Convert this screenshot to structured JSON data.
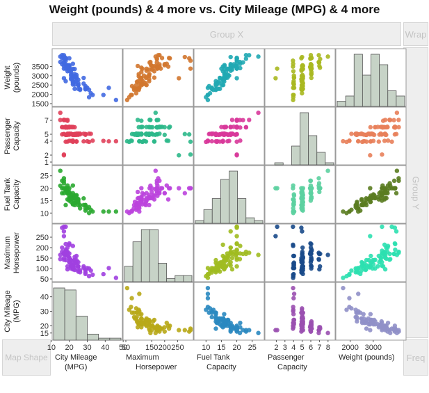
{
  "title": "Weight (pounds) & 4 more vs. City Mileage (MPG) & 4 more",
  "zones": {
    "group_x": "Group X",
    "wrap": "Wrap",
    "group_y": "Group Y",
    "map_shape": "Map Shape",
    "freq": "Freq"
  },
  "chart_data": {
    "type": "scatter",
    "variables": [
      {
        "id": "weight",
        "col_label": [
          "Weight (pounds)"
        ],
        "row_label": [
          "Weight",
          "(pounds)"
        ],
        "range": [
          1500,
          4300
        ],
        "col_ticks": [
          2000,
          3000
        ],
        "row_ticks": [
          1500,
          2000,
          2500,
          3000,
          3500
        ],
        "hist": [
          1,
          2,
          10,
          6,
          10,
          8,
          3,
          2
        ]
      },
      {
        "id": "passenger",
        "col_label": [
          "Passenger",
          "Capacity"
        ],
        "row_label": [
          "Passenger",
          "Capacity"
        ],
        "range": [
          1,
          8.5
        ],
        "col_ticks": [
          2,
          3,
          4,
          5,
          6,
          7,
          8
        ],
        "row_ticks": [
          1,
          2,
          4,
          5,
          7
        ],
        "hist": [
          0,
          1,
          0,
          9,
          25,
          14,
          6,
          1
        ]
      },
      {
        "id": "fuel",
        "col_label": [
          "Fuel Tank",
          "Capacity"
        ],
        "row_label": [
          "Fuel Tank",
          "Capacity"
        ],
        "range": [
          7,
          28
        ],
        "col_ticks": [
          10,
          15,
          20,
          25
        ],
        "row_ticks": [
          10,
          15,
          20,
          25
        ],
        "hist": [
          1,
          5,
          9,
          16,
          19,
          9,
          2,
          1
        ]
      },
      {
        "id": "hp",
        "col_label": [
          "Maximum",
          "Horsepower"
        ],
        "row_label": [
          "Maximum",
          "Horsepower"
        ],
        "range": [
          50,
          300
        ],
        "col_ticks": [
          50,
          150,
          200,
          250
        ],
        "row_ticks": [
          50,
          100,
          150,
          200,
          250
        ],
        "hist": [
          5,
          13,
          17,
          17,
          6,
          1,
          2,
          2
        ]
      },
      {
        "id": "mpg",
        "col_label": [
          "City Mileage",
          "(MPG)"
        ],
        "row_label": [
          "City Mileage",
          "(MPG)"
        ],
        "range": [
          12,
          48
        ],
        "col_ticks": [
          10,
          20,
          30,
          40,
          50
        ],
        "row_ticks": [
          15,
          20,
          30,
          40
        ],
        "hist": [
          26,
          25,
          12,
          3,
          1,
          1
        ]
      }
    ],
    "column_order": [
      "mpg",
      "hp",
      "fuel",
      "passenger",
      "weight"
    ],
    "row_order": [
      "weight",
      "passenger",
      "fuel",
      "hp",
      "mpg"
    ],
    "panel_colors": {
      "weight-mpg": "#4169e1",
      "weight-hp": "#d2772f",
      "weight-fuel": "#20a8b2",
      "weight-passenger": "#a8b820",
      "passenger-mpg": "#e0405a",
      "passenger-hp": "#2cb88a",
      "passenger-fuel": "#d8389a",
      "passenger-weight": "#e8805a",
      "fuel-mpg": "#2aa830",
      "fuel-hp": "#bb44dd",
      "fuel-passenger": "#5cd0a0",
      "fuel-weight": "#5a7c20",
      "hp-mpg": "#a040e0",
      "hp-fuel": "#a0bb20",
      "hp-passenger": "#1a4a8a",
      "hp-weight": "#2ce0b0",
      "mpg-hp": "#b8a818",
      "mpg-fuel": "#2a88c0",
      "mpg-passenger": "#9a50b0",
      "mpg-weight": "#9090c8"
    },
    "hist_color": "#c7d3c7",
    "hist_stroke": "#555555",
    "grid": false,
    "records": [
      {
        "mpg": 18,
        "hp": 140,
        "fuel": 13.2,
        "passenger": 5,
        "weight": 2705
      },
      {
        "mpg": 19,
        "hp": 200,
        "fuel": 18,
        "passenger": 5,
        "weight": 3560
      },
      {
        "mpg": 20,
        "hp": 172,
        "fuel": 16.9,
        "passenger": 5,
        "weight": 3375
      },
      {
        "mpg": 19,
        "hp": 172,
        "fuel": 21.1,
        "passenger": 6,
        "weight": 3405
      },
      {
        "mpg": 22,
        "hp": 208,
        "fuel": 21.1,
        "passenger": 4,
        "weight": 3640
      },
      {
        "mpg": 22,
        "hp": 110,
        "fuel": 16.4,
        "passenger": 6,
        "weight": 2880
      },
      {
        "mpg": 19,
        "hp": 170,
        "fuel": 18,
        "passenger": 6,
        "weight": 3470
      },
      {
        "mpg": 16,
        "hp": 180,
        "fuel": 23,
        "passenger": 6,
        "weight": 4105
      },
      {
        "mpg": 19,
        "hp": 170,
        "fuel": 18.8,
        "passenger": 5,
        "weight": 3495
      },
      {
        "mpg": 16,
        "hp": 200,
        "fuel": 18,
        "passenger": 6,
        "weight": 3620
      },
      {
        "mpg": 16,
        "hp": 295,
        "fuel": 20,
        "passenger": 5,
        "weight": 3935
      },
      {
        "mpg": 25,
        "hp": 110,
        "fuel": 15.2,
        "passenger": 5,
        "weight": 2490
      },
      {
        "mpg": 25,
        "hp": 110,
        "fuel": 15.6,
        "passenger": 5,
        "weight": 2785
      },
      {
        "mpg": 19,
        "hp": 160,
        "fuel": 15.5,
        "passenger": 4,
        "weight": 3240
      },
      {
        "mpg": 21,
        "hp": 110,
        "fuel": 16.5,
        "passenger": 6,
        "weight": 3195
      },
      {
        "mpg": 17,
        "hp": 170,
        "fuel": 22,
        "passenger": 7,
        "weight": 3715
      },
      {
        "mpg": 15,
        "hp": 165,
        "fuel": 27,
        "passenger": 8,
        "weight": 4025
      },
      {
        "mpg": 17,
        "hp": 170,
        "fuel": 23,
        "passenger": 6,
        "weight": 3910
      },
      {
        "mpg": 17,
        "hp": 300,
        "fuel": 20,
        "passenger": 2,
        "weight": 3380
      },
      {
        "mpg": 20,
        "hp": 153,
        "fuel": 16,
        "passenger": 6,
        "weight": 3515
      },
      {
        "mpg": 23,
        "hp": 141,
        "fuel": 16,
        "passenger": 6,
        "weight": 3085
      },
      {
        "mpg": 20,
        "hp": 147,
        "fuel": 16,
        "passenger": 6,
        "weight": 3570
      },
      {
        "mpg": 29,
        "hp": 92,
        "fuel": 13.2,
        "passenger": 5,
        "weight": 2270
      },
      {
        "mpg": 23,
        "hp": 93,
        "fuel": 14,
        "passenger": 5,
        "weight": 2670
      },
      {
        "mpg": 22,
        "hp": 100,
        "fuel": 16,
        "passenger": 5,
        "weight": 2970
      },
      {
        "mpg": 17,
        "hp": 142,
        "fuel": 20,
        "passenger": 7,
        "weight": 3705
      },
      {
        "mpg": 21,
        "hp": 100,
        "fuel": 16,
        "passenger": 6,
        "weight": 3080
      },
      {
        "mpg": 18,
        "hp": 300,
        "fuel": 20,
        "passenger": 4,
        "weight": 3805
      },
      {
        "mpg": 29,
        "hp": 92,
        "fuel": 13.2,
        "passenger": 5,
        "weight": 2295
      },
      {
        "mpg": 20,
        "hp": 214,
        "fuel": 15.5,
        "passenger": 4,
        "weight": 3490
      },
      {
        "mpg": 31,
        "hp": 63,
        "fuel": 10,
        "passenger": 4,
        "weight": 1845
      },
      {
        "mpg": 23,
        "hp": 127,
        "fuel": 13.2,
        "passenger": 5,
        "weight": 2530
      },
      {
        "mpg": 22,
        "hp": 96,
        "fuel": 15.9,
        "passenger": 5,
        "weight": 2690
      },
      {
        "mpg": 22,
        "hp": 105,
        "fuel": 15.4,
        "passenger": 5,
        "weight": 2850
      },
      {
        "mpg": 24,
        "hp": 115,
        "fuel": 15.4,
        "passenger": 4,
        "weight": 2710
      },
      {
        "mpg": 15,
        "hp": 145,
        "fuel": 21,
        "passenger": 7,
        "weight": 3735
      },
      {
        "mpg": 21,
        "hp": 140,
        "fuel": 16,
        "passenger": 6,
        "weight": 3325
      },
      {
        "mpg": 18,
        "hp": 190,
        "fuel": 20,
        "passenger": 6,
        "weight": 3950
      },
      {
        "mpg": 46,
        "hp": 55,
        "fuel": 10.6,
        "passenger": 4,
        "weight": 1695
      },
      {
        "mpg": 30,
        "hp": 102,
        "fuel": 11.9,
        "passenger": 4,
        "weight": 2350
      },
      {
        "mpg": 24,
        "hp": 160,
        "fuel": 17,
        "passenger": 4,
        "weight": 2895
      },
      {
        "mpg": 42,
        "hp": 102,
        "fuel": 10.6,
        "passenger": 4,
        "weight": 2350
      },
      {
        "mpg": 24,
        "hp": 140,
        "fuel": 17.2,
        "passenger": 5,
        "weight": 3040
      },
      {
        "mpg": 29,
        "hp": 81,
        "fuel": 11.9,
        "passenger": 5,
        "weight": 2345
      },
      {
        "mpg": 22,
        "hp": 124,
        "fuel": 13.7,
        "passenger": 4,
        "weight": 2620
      },
      {
        "mpg": 26,
        "hp": 92,
        "fuel": 11.9,
        "passenger": 5,
        "weight": 2285
      },
      {
        "mpg": 24,
        "hp": 128,
        "fuel": 14.5,
        "passenger": 4,
        "weight": 2885
      },
      {
        "mpg": 20,
        "hp": 150,
        "fuel": 18.5,
        "passenger": 5,
        "weight": 3325
      },
      {
        "mpg": 17,
        "hp": 278,
        "fuel": 18,
        "passenger": 5,
        "weight": 4000
      },
      {
        "mpg": 18,
        "hp": 185,
        "fuel": 20,
        "passenger": 6,
        "weight": 3380
      },
      {
        "mpg": 29,
        "hp": 74,
        "fuel": 11,
        "passenger": 5,
        "weight": 2440
      },
      {
        "mpg": 28,
        "hp": 103,
        "fuel": 13.2,
        "passenger": 4,
        "weight": 2575
      },
      {
        "mpg": 26,
        "hp": 82,
        "fuel": 13.2,
        "passenger": 5,
        "weight": 2240
      },
      {
        "mpg": 18,
        "hp": 164,
        "fuel": 19.6,
        "passenger": 5,
        "weight": 3525
      },
      {
        "mpg": 17,
        "hp": 255,
        "fuel": 20,
        "passenger": 2,
        "weight": 2865
      },
      {
        "mpg": 18,
        "hp": 170,
        "fuel": 20,
        "passenger": 7,
        "weight": 3895
      },
      {
        "mpg": 20,
        "hp": 220,
        "fuel": 20,
        "passenger": 6,
        "weight": 3935
      },
      {
        "mpg": 19,
        "hp": 177,
        "fuel": 18,
        "passenger": 6,
        "weight": 3450
      },
      {
        "mpg": 23,
        "hp": 100,
        "fuel": 14,
        "passenger": 5,
        "weight": 2295
      },
      {
        "mpg": 19,
        "hp": 180,
        "fuel": 18,
        "passenger": 5,
        "weight": 3510
      },
      {
        "mpg": 18,
        "hp": 180,
        "fuel": 19,
        "passenger": 6,
        "weight": 3610
      },
      {
        "mpg": 33,
        "hp": 70,
        "fuel": 10.6,
        "passenger": 4,
        "weight": 1965
      },
      {
        "mpg": 21,
        "hp": 110,
        "fuel": 14.5,
        "passenger": 5,
        "weight": 2865
      },
      {
        "mpg": 23,
        "hp": 155,
        "fuel": 17.2,
        "passenger": 5,
        "weight": 3360
      },
      {
        "mpg": 17,
        "hp": 175,
        "fuel": 24,
        "passenger": 7,
        "weight": 4100
      },
      {
        "mpg": 21,
        "hp": 120,
        "fuel": 17.5,
        "passenger": 4,
        "weight": 3005
      },
      {
        "mpg": 19,
        "hp": 170,
        "fuel": 20,
        "passenger": 6,
        "weight": 3470
      },
      {
        "mpg": 25,
        "hp": 110,
        "fuel": 14.3,
        "passenger": 5,
        "weight": 2590
      },
      {
        "mpg": 39,
        "hp": 73,
        "fuel": 10.6,
        "passenger": 4,
        "weight": 1965
      },
      {
        "mpg": 32,
        "hp": 90,
        "fuel": 11.3,
        "passenger": 5,
        "weight": 2055
      },
      {
        "mpg": 25,
        "hp": 130,
        "fuel": 15.6,
        "passenger": 5,
        "weight": 2500
      },
      {
        "mpg": 20,
        "hp": 130,
        "fuel": 15,
        "passenger": 6,
        "weight": 3375
      },
      {
        "mpg": 19,
        "hp": 96,
        "fuel": 18.5,
        "passenger": 7,
        "weight": 3520
      },
      {
        "mpg": 21,
        "hp": 140,
        "fuel": 15.9,
        "passenger": 5,
        "weight": 2810
      },
      {
        "mpg": 18,
        "hp": 217,
        "fuel": 20,
        "passenger": 6,
        "weight": 3950
      },
      {
        "mpg": 31,
        "hp": 100,
        "fuel": 12.4,
        "passenger": 5,
        "weight": 2240
      },
      {
        "mpg": 23,
        "hp": 140,
        "fuel": 16.5,
        "passenger": 5,
        "weight": 2985
      },
      {
        "mpg": 19,
        "hp": 110,
        "fuel": 20,
        "passenger": 7,
        "weight": 3430
      },
      {
        "mpg": 17,
        "hp": 150,
        "fuel": 20,
        "passenger": 5,
        "weight": 3525
      },
      {
        "mpg": 25,
        "hp": 90,
        "fuel": 13.2,
        "passenger": 5,
        "weight": 2490
      },
      {
        "mpg": 20,
        "hp": 130,
        "fuel": 18,
        "passenger": 5,
        "weight": 3265
      },
      {
        "mpg": 28,
        "hp": 110,
        "fuel": 15.9,
        "passenger": 5,
        "weight": 2880
      },
      {
        "mpg": 25,
        "hp": 85,
        "fuel": 14.5,
        "passenger": 5,
        "weight": 2295
      },
      {
        "mpg": 22,
        "hp": 114,
        "fuel": 13.5,
        "passenger": 4,
        "weight": 2525
      },
      {
        "mpg": 24,
        "hp": 130,
        "fuel": 16,
        "passenger": 5,
        "weight": 2935
      },
      {
        "mpg": 22,
        "hp": 114,
        "fuel": 18,
        "passenger": 6,
        "weight": 3370
      }
    ]
  }
}
